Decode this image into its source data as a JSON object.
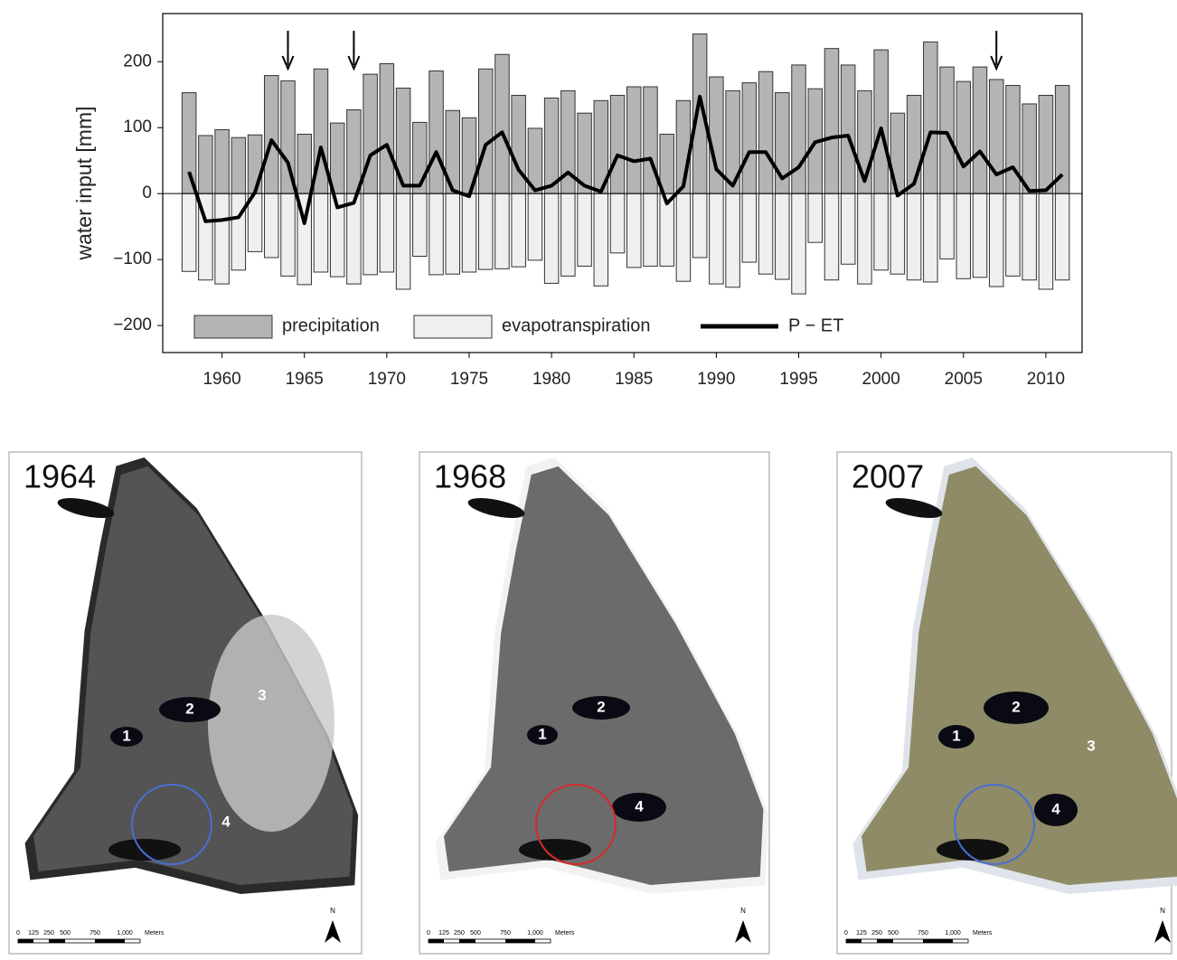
{
  "chart_data": {
    "type": "bar",
    "y_label": "water input [mm]",
    "x": [
      1958,
      1959,
      1960,
      1961,
      1962,
      1963,
      1964,
      1965,
      1966,
      1967,
      1968,
      1969,
      1970,
      1971,
      1972,
      1973,
      1974,
      1975,
      1976,
      1977,
      1978,
      1979,
      1980,
      1981,
      1982,
      1983,
      1984,
      1985,
      1986,
      1987,
      1988,
      1989,
      1990,
      1991,
      1992,
      1993,
      1994,
      1995,
      1996,
      1997,
      1998,
      1999,
      2000,
      2001,
      2002,
      2003,
      2004,
      2005,
      2006,
      2007,
      2008,
      2009,
      2010,
      2011
    ],
    "series": [
      {
        "name": "precipitation",
        "type": "bar",
        "color": "#b4b4b4",
        "values": [
          153,
          88,
          97,
          85,
          89,
          179,
          171,
          90,
          189,
          107,
          127,
          181,
          197,
          160,
          108,
          186,
          126,
          115,
          189,
          211,
          149,
          99,
          145,
          156,
          122,
          141,
          149,
          162,
          162,
          90,
          141,
          242,
          177,
          156,
          168,
          185,
          153,
          195,
          159,
          220,
          195,
          156,
          218,
          122,
          149,
          230,
          192,
          170,
          192,
          173,
          164,
          136,
          149,
          164
        ]
      },
      {
        "name": "evapotranspiration",
        "type": "bar",
        "color": "#efefef",
        "values": [
          -118,
          -131,
          -137,
          -116,
          -88,
          -97,
          -125,
          -138,
          -119,
          -126,
          -137,
          -123,
          -119,
          -145,
          -95,
          -123,
          -122,
          -119,
          -115,
          -114,
          -111,
          -101,
          -136,
          -125,
          -110,
          -140,
          -90,
          -112,
          -110,
          -110,
          -133,
          -97,
          -137,
          -142,
          -104,
          -122,
          -130,
          -152,
          -74,
          -131,
          -107,
          -137,
          -116,
          -122,
          -131,
          -134,
          -99,
          -129,
          -127,
          -141,
          -125,
          -131,
          -145,
          -131
        ]
      },
      {
        "name": "P − ET",
        "type": "line",
        "color": "#000000",
        "values": [
          33,
          -42,
          -40,
          -36,
          2,
          81,
          47,
          -45,
          70,
          -21,
          -14,
          58,
          74,
          12,
          12,
          63,
          5,
          -4,
          74,
          93,
          36,
          5,
          12,
          32,
          12,
          3,
          58,
          49,
          53,
          -15,
          11,
          147,
          37,
          12,
          63,
          63,
          23,
          40,
          78,
          85,
          88,
          19,
          99,
          -3,
          15,
          93,
          92,
          41,
          64,
          29,
          40,
          4,
          5,
          29
        ]
      }
    ],
    "xlim": [
      1956.4,
      2012.2
    ],
    "xticks": [
      1960,
      1965,
      1970,
      1975,
      1980,
      1985,
      1990,
      1995,
      2000,
      2005,
      2010
    ],
    "ylim": [
      -241,
      273
    ],
    "yticks": [
      {
        "value": -200,
        "label": "−200"
      },
      {
        "value": -100,
        "label": "−100"
      },
      0,
      100,
      200
    ],
    "arrows": [
      1964,
      1968,
      2007
    ],
    "legend": "bottom-left"
  },
  "maps": [
    {
      "title": "1964",
      "labels": [
        "2",
        "1",
        "3",
        "4"
      ],
      "circle_color": "#4a6fd4"
    },
    {
      "title": "1968",
      "labels": [
        "2",
        "1",
        "4"
      ],
      "circle_color": "#d42a2a"
    },
    {
      "title": "2007",
      "labels": [
        "2",
        "1",
        "3",
        "4"
      ],
      "circle_color": "#4a6fd4"
    }
  ],
  "scale_labels": [
    "0",
    "125",
    "250",
    "500",
    "750",
    "1,000",
    "Meters"
  ],
  "north": "N"
}
